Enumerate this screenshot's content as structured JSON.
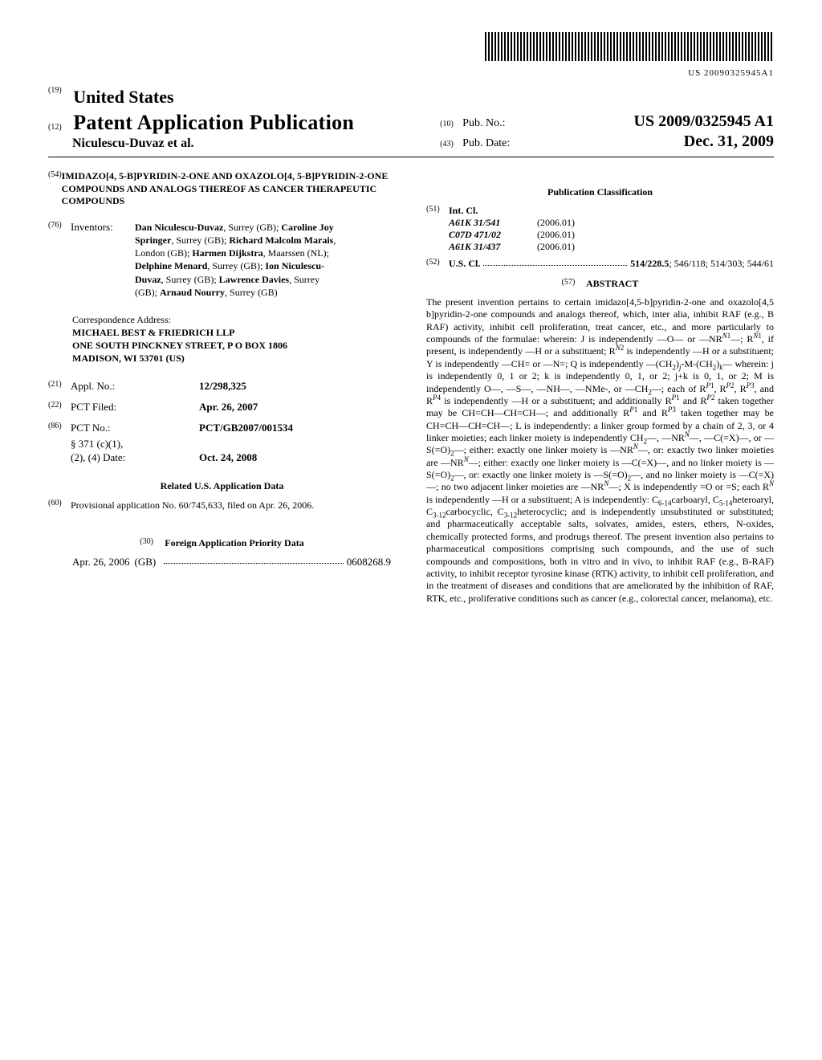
{
  "barcode_number": "US 20090325945A1",
  "header": {
    "country_num": "(19)",
    "country": "United States",
    "pub_type_num": "(12)",
    "pub_type": "Patent Application Publication",
    "authors_line": "Niculescu-Duvaz et al.",
    "pubno_num": "(10)",
    "pubno_label": "Pub. No.:",
    "pubno_val": "US 2009/0325945 A1",
    "pubdate_num": "(43)",
    "pubdate_label": "Pub. Date:",
    "pubdate_val": "Dec. 31, 2009"
  },
  "title": {
    "num": "(54)",
    "text": "IMIDAZO[4, 5-B]PYRIDIN-2-ONE AND OXAZOLO[4, 5-B]PYRIDIN-2-ONE COMPOUNDS AND ANALOGS THEREOF AS CANCER THERAPEUTIC COMPOUNDS"
  },
  "inventors": {
    "num": "(76)",
    "label": "Inventors:",
    "text_html": "<b>Dan Niculescu-Duvaz</b>, Surrey (GB); <b>Caroline Joy Springer</b>, Surrey (GB); <b>Richard Malcolm Marais</b>, London (GB); <b>Harmen Dijkstra</b>, Maarssen (NL); <b>Delphine Menard</b>, Surrey (GB); <b>Ion Niculescu-Duvaz</b>, Surrey (GB); <b>Lawrence Davies</b>, Surrey (GB); <b>Arnaud Nourry</b>, Surrey (GB)"
  },
  "correspondence": {
    "label": "Correspondence Address:",
    "lines": [
      "MICHAEL BEST & FRIEDRICH LLP",
      "ONE SOUTH PINCKNEY STREET, P O BOX 1806",
      "MADISON, WI 53701 (US)"
    ]
  },
  "applno": {
    "num": "(21)",
    "label": "Appl. No.:",
    "val": "12/298,325"
  },
  "pctfiled": {
    "num": "(22)",
    "label": "PCT Filed:",
    "val": "Apr. 26, 2007"
  },
  "pctno": {
    "num": "(86)",
    "label": "PCT No.:",
    "val": "PCT/GB2007/001534"
  },
  "s371": {
    "label": "§ 371 (c)(1),",
    "label2": "(2), (4) Date:",
    "val": "Oct. 24, 2008"
  },
  "related": {
    "hdr": "Related U.S. Application Data",
    "num": "(60)",
    "text": "Provisional application No. 60/745,633, filed on Apr. 26, 2006."
  },
  "foreign": {
    "hdr": "Foreign Application Priority Data",
    "num": "(30)",
    "date": "Apr. 26, 2006",
    "country": "(GB)",
    "appno": "0608268.9"
  },
  "pubclass": {
    "hdr": "Publication Classification",
    "intcl_num": "(51)",
    "intcl_label": "Int. Cl.",
    "intcl": [
      {
        "code": "A61K 31/541",
        "year": "(2006.01)"
      },
      {
        "code": "C07D 471/02",
        "year": "(2006.01)"
      },
      {
        "code": "A61K 31/437",
        "year": "(2006.01)"
      }
    ],
    "uscl_num": "(52)",
    "uscl_label": "U.S. Cl.",
    "uscl_val": "514/228.5",
    "uscl_rest": "; 546/118; 514/303; 544/61"
  },
  "abstract": {
    "num": "(57)",
    "hdr": "ABSTRACT",
    "text_html": "The present invention pertains to certain imidazo[4,5-b]pyridin-2-one and oxazolo[4,5 b]pyridin-2-one compounds and analogs thereof, which, inter alia, inhibit RAF (e.g., B RAF) activity, inhibit cell proliferation, treat cancer, etc., and more particularly to compounds of the formulae: wherein: J is independently —O— or —NR<sup><i>N</i>1</sup>—; R<sup><i>N</i>1</sup>, if present, is independently —H or a substituent; R<sup><i>N</i>2</sup> is independently —H or a substituent; Y is independently —CH&#x003D; or —N&#x003D;; Q is independently —(CH<sub>2</sub>)<sub><i>j</i></sub>-M-(CH<sub>2</sub>)<sub><i>k</i></sub>— wherein: j is independently 0, 1 or 2; k is independently 0, 1, or 2; j+k is 0, 1, or 2; M is independently O—, —S—, —NH—, —NMe-, or —CH<sub>2</sub>—; each of R<sup><i>P</i>1</sup>, R<sup><i>P</i>2</sup>, R<sup><i>P</i>3</sup>, and R<sup><i>P</i>4</sup> is independently —H or a substituent; and additionally R<sup><i>P</i>1</sup> and R<sup><i>P</i>2</sup> taken together may be CH&#x003D;CH—CH&#x003D;CH—; and additionally R<sup><i>P</i>1</sup> and R<sup><i>P</i>3</sup> taken together may be CH&#x003D;CH—CH&#x003D;CH—; L is independently: a linker group formed by a chain of 2, 3, or 4 linker moieties; each linker moiety is independently CH<sub>2</sub>—, —NR<sup><i>N</i></sup>—, —C(&#x003D;X)—, or —S(&#x003D;O)<sub>2</sub>—; either: exactly one linker moiety is —NR<sup><i>N</i></sup>—, or: exactly two linker moieties are —NR<sup><i>N</i></sup>—; either: exactly one linker moiety is —C(&#x003D;X)—, and no linker moiety is —S(&#x003D;O)<sub>2</sub>—, or: exactly one linker moiety is —S(&#x003D;O)<sub>2</sub>—, and no linker moiety is —C(&#x003D;X)—; no two adjacent linker moieties are —NR<sup><i>N</i></sup>—; X is independently &#x003D;O or &#x003D;S; each R<sup><i>N</i></sup> is independently —H or a substituent; A is independently: C<sub>6-14</sub>carboaryl, C<sub>5-14</sub>heteroaryl, C<sub>3-12</sub>carbocyclic, C<sub>3-12</sub>heterocyclic; and is independently unsubstituted or substituted; and pharmaceutically acceptable salts, solvates, amides, esters, ethers, N-oxides, chemically protected forms, and prodrugs thereof. The present invention also pertains to pharmaceutical compositions comprising such compounds, and the use of such compounds and compositions, both in vitro and in vivo, to inhibit RAF (e.g., B-RAF) activity, to inhibit receptor tyrosine kinase (RTK) activity, to inhibit cell proliferation, and in the treatment of diseases and conditions that are ameliorated by the inhibition of RAF, RTK, etc., proliferative conditions such as cancer (e.g., colorectal cancer, melanoma), etc."
  }
}
